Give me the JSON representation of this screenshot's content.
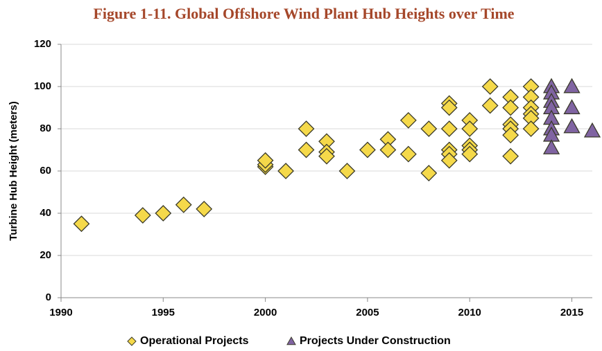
{
  "chart_data": {
    "type": "scatter",
    "title": "Figure 1-11. Global Offshore Wind Plant Hub Heights over Time",
    "y_label": "Turbine Hub Height (meters)",
    "xlim": [
      1990,
      2016
    ],
    "xticks": [
      1990,
      1995,
      2000,
      2005,
      2010,
      2015
    ],
    "ylim": [
      0,
      120
    ],
    "yticks": [
      0,
      20,
      40,
      60,
      80,
      100,
      120
    ],
    "grid": true,
    "legend": "bottom",
    "series": [
      {
        "name": "Operational Projects",
        "color": "#f5d94a",
        "marker": "diamond",
        "x": [
          1991,
          1994,
          1995,
          1996,
          1997,
          2000,
          2000,
          2000,
          2001,
          2002,
          2002,
          2003,
          2003,
          2003,
          2004,
          2005,
          2006,
          2006,
          2007,
          2007,
          2008,
          2008,
          2009,
          2009,
          2009,
          2009,
          2009,
          2009,
          2010,
          2010,
          2010,
          2010,
          2010,
          2011,
          2011,
          2012,
          2012,
          2012,
          2012,
          2012,
          2012,
          2013,
          2013,
          2013,
          2013,
          2013,
          2013
        ],
        "values": [
          35,
          39,
          40,
          44,
          42,
          62,
          63,
          65,
          60,
          80,
          70,
          74,
          69,
          67,
          60,
          70,
          75,
          70,
          84,
          68,
          80,
          59,
          92,
          90,
          80,
          70,
          68,
          65,
          84,
          80,
          72,
          70,
          68,
          100,
          91,
          95,
          90,
          82,
          80,
          77,
          67,
          100,
          95,
          90,
          87,
          85,
          80
        ]
      },
      {
        "name": "Projects Under Construction",
        "color": "#8064a2",
        "marker": "triangle",
        "x": [
          2014,
          2014,
          2014,
          2014,
          2014,
          2014,
          2014,
          2014,
          2015,
          2015,
          2015,
          2016
        ],
        "values": [
          100,
          97,
          93,
          90,
          85,
          80,
          77,
          71,
          100,
          90,
          81,
          79
        ]
      }
    ]
  }
}
